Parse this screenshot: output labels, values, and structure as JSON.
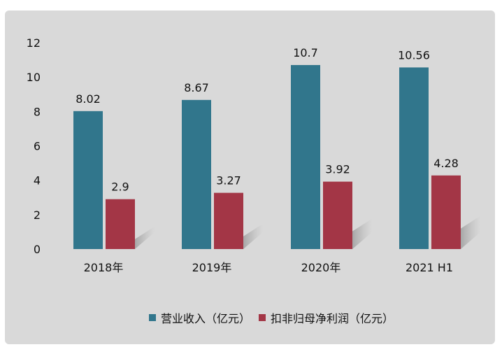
{
  "chart_data": {
    "type": "bar",
    "categories": [
      "2018年",
      "2019年",
      "2020年",
      "2021 H1"
    ],
    "series": [
      {
        "name": "营业收入（亿元）",
        "values": [
          8.02,
          8.67,
          10.7,
          10.56
        ],
        "labels": [
          "8.02",
          "8.67",
          "10.7",
          "10.56"
        ],
        "color": "#31768c"
      },
      {
        "name": "扣非归母净利润（亿元）",
        "values": [
          2.9,
          3.27,
          3.92,
          4.28
        ],
        "labels": [
          "2.9",
          "3.27",
          "3.92",
          "4.28"
        ],
        "color": "#a33646"
      }
    ],
    "ylim": [
      0,
      12
    ],
    "yticks": [
      "0",
      "2",
      "4",
      "6",
      "8",
      "10",
      "12"
    ],
    "grid": false,
    "legend": "bottom",
    "background": "#d9d9d9"
  }
}
